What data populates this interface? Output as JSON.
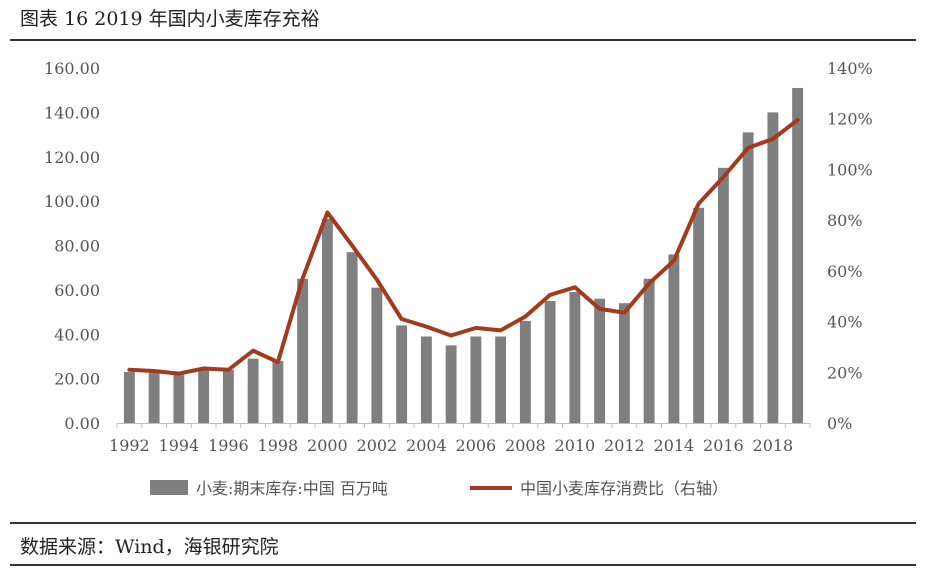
{
  "header": {
    "title": "图表 16 2019 年国内小麦库存充裕"
  },
  "footer": {
    "source": "数据来源：Wind，海银研究院"
  },
  "colors": {
    "bar": "#7f7f7f",
    "line": "#a33a1e"
  },
  "chart_data": {
    "type": "bar+line",
    "x": [
      1992,
      1993,
      1994,
      1995,
      1996,
      1997,
      1998,
      1999,
      2000,
      2001,
      2002,
      2003,
      2004,
      2005,
      2006,
      2007,
      2008,
      2009,
      2010,
      2011,
      2012,
      2013,
      2014,
      2015,
      2016,
      2017,
      2018,
      2019
    ],
    "xticks": [
      "1992",
      "1994",
      "1996",
      "1998",
      "2000",
      "2002",
      "2004",
      "2006",
      "2008",
      "2010",
      "2012",
      "2014",
      "2016",
      "2018"
    ],
    "yticks_left": [
      "0.00",
      "20.00",
      "40.00",
      "60.00",
      "80.00",
      "100.00",
      "120.00",
      "140.00",
      "160.00"
    ],
    "yticks_right": [
      "0%",
      "20%",
      "40%",
      "60%",
      "80%",
      "100%",
      "120%",
      "140%"
    ],
    "ylim_left": [
      0,
      160
    ],
    "ylim_right": [
      0,
      140
    ],
    "series": [
      {
        "name": "小麦:期末库存:中国 百万吨",
        "kind": "bar",
        "axis": "left",
        "values": [
          23,
          23,
          22,
          24,
          24,
          29,
          28,
          65,
          92,
          77,
          61,
          44,
          39,
          35,
          39,
          39,
          46,
          55,
          59,
          56,
          54,
          65,
          76,
          97,
          115,
          131,
          140,
          151
        ]
      },
      {
        "name": "中国小麦库存消费比（右轴）",
        "kind": "line",
        "axis": "right",
        "values": [
          21,
          20.5,
          19.5,
          21.5,
          21,
          28.5,
          24,
          57,
          83,
          70,
          56.5,
          41,
          38,
          34.5,
          37.5,
          36.5,
          42,
          50.5,
          53.5,
          45,
          43.5,
          55,
          64,
          86.5,
          97,
          108.5,
          112,
          119.5
        ]
      }
    ],
    "legend_position": "bottom",
    "grid": false
  }
}
